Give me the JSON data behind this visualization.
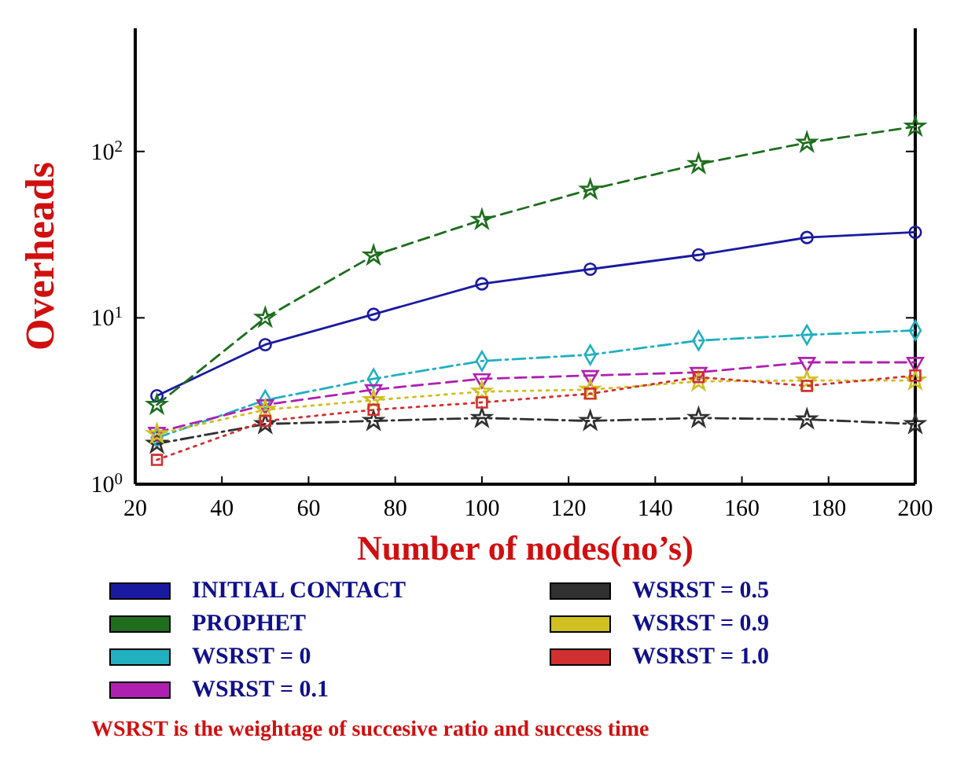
{
  "chart_data": {
    "type": "line",
    "xlabel": "Number of nodes(no’s)",
    "ylabel": "Overheads",
    "log": "y",
    "grid": false,
    "legend": "bottom",
    "xlim": [
      20,
      200
    ],
    "xticks": [
      20,
      40,
      60,
      80,
      100,
      120,
      140,
      160,
      180,
      200
    ],
    "ylim": [
      1,
      550
    ],
    "yticks": [
      {
        "value": 1,
        "label": "10$^{0}$"
      },
      {
        "value": 10,
        "label": "10$^{1}$"
      },
      {
        "value": 100,
        "label": "10$^{2}$"
      }
    ],
    "x": [
      25,
      50,
      75,
      100,
      125,
      150,
      175,
      200
    ],
    "series": [
      {
        "name": "INITIAL CONTACT",
        "color": "#1a1aa0",
        "marker": "circle",
        "line_style": "solid",
        "values": [
          3.4,
          6.9,
          10.5,
          16,
          19.6,
          23.9,
          30.4,
          32.7
        ]
      },
      {
        "name": "PROPHET",
        "color": "#1e6e1e",
        "marker": "star",
        "line_style": "dashed",
        "values": [
          3.0,
          10,
          23.7,
          38.8,
          59,
          84,
          113,
          141
        ]
      },
      {
        "name": "WSRST = 0",
        "color": "#20b0c0",
        "marker": "diamond",
        "line_style": "dashdot",
        "values": [
          1.9,
          3.2,
          4.3,
          5.5,
          6.0,
          7.3,
          7.9,
          8.4
        ]
      },
      {
        "name": "WSRST = 0.1",
        "color": "#b020b0",
        "marker": "triangle",
        "line_style": "dashed",
        "values": [
          2.05,
          3.0,
          3.7,
          4.3,
          4.5,
          4.7,
          5.4,
          5.4
        ]
      },
      {
        "name": "WSRST = 0.5",
        "color": "#303030",
        "marker": "star",
        "line_style": "dashdot",
        "values": [
          1.75,
          2.3,
          2.4,
          2.5,
          2.4,
          2.5,
          2.45,
          2.3
        ]
      },
      {
        "name": "WSRST = 0.9",
        "color": "#d0c020",
        "marker": "star",
        "line_style": "dotted",
        "values": [
          2.0,
          2.8,
          3.2,
          3.6,
          3.7,
          4.15,
          4.2,
          4.2
        ]
      },
      {
        "name": "WSRST = 1.0",
        "color": "#d03030",
        "marker": "square",
        "line_style": "dotted",
        "values": [
          1.4,
          2.4,
          2.8,
          3.1,
          3.5,
          4.4,
          3.9,
          4.5
        ]
      }
    ],
    "annotations": [
      "WSRST is the weightage of succesive ratio and success time"
    ]
  }
}
